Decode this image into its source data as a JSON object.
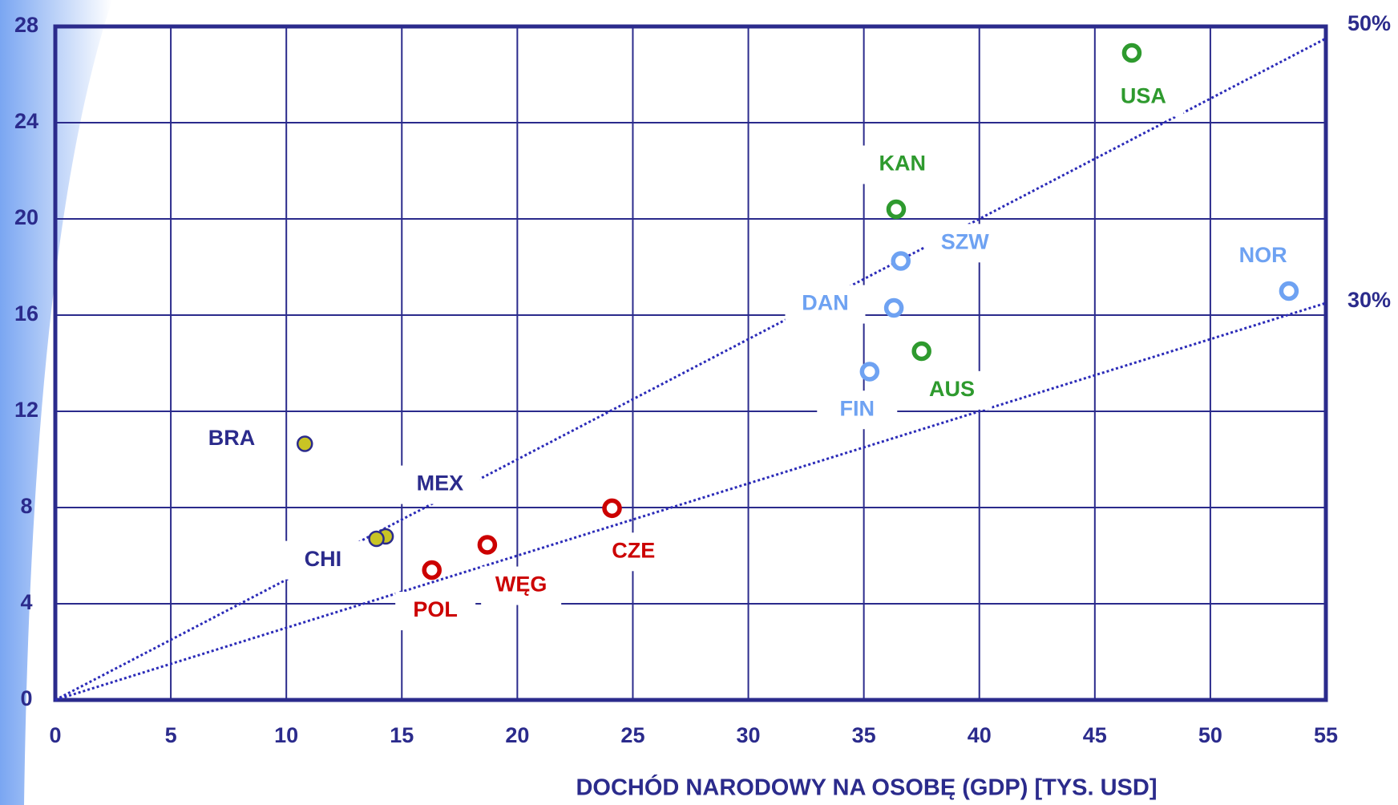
{
  "chart_data": {
    "type": "scatter",
    "x_label": "DOCHÓD NARODOWY NA OSOBĘ  (GDP) [TYS. USD]",
    "xlim": [
      0,
      55
    ],
    "xticks": [
      0,
      5,
      10,
      15,
      20,
      25,
      30,
      35,
      40,
      45,
      50,
      55
    ],
    "ylim": [
      0,
      28
    ],
    "yticks": [
      0,
      4,
      8,
      12,
      16,
      20,
      24,
      28
    ],
    "grid": true,
    "points": [
      {
        "label": "USA",
        "x": 46.6,
        "y": 26.9,
        "color": "#2e9a2e",
        "fill": "#ffffff"
      },
      {
        "label": "KAN",
        "x": 36.4,
        "y": 20.4,
        "color": "#2e9a2e",
        "fill": "#ffffff"
      },
      {
        "label": "SZW",
        "x": 36.6,
        "y": 18.25,
        "color": "#6ea2f2",
        "fill": "#ffffff"
      },
      {
        "label": "DAN",
        "x": 36.3,
        "y": 16.3,
        "color": "#6ea2f2",
        "fill": "#ffffff"
      },
      {
        "label": "NOR",
        "x": 53.4,
        "y": 17.0,
        "color": "#6ea2f2",
        "fill": "#ffffff"
      },
      {
        "label": "AUS",
        "x": 37.5,
        "y": 14.5,
        "color": "#2e9a2e",
        "fill": "#ffffff"
      },
      {
        "label": "FIN",
        "x": 35.25,
        "y": 13.65,
        "color": "#6ea2f2",
        "fill": "#ffffff"
      },
      {
        "label": "BRA",
        "x": 10.8,
        "y": 10.65,
        "color": "#2b2b8c",
        "fill": "#c8c424"
      },
      {
        "label": "MEX",
        "x": 14.3,
        "y": 6.8,
        "color": "#2b2b8c",
        "fill": "#c8c424"
      },
      {
        "label": "CHI",
        "x": 13.9,
        "y": 6.7,
        "color": "#2b2b8c",
        "fill": "#c8c424"
      },
      {
        "label": "CZE",
        "x": 24.1,
        "y": 7.97,
        "color": "#cc0000",
        "fill": "#ffffff"
      },
      {
        "label": "WĘG",
        "x": 18.7,
        "y": 6.45,
        "color": "#cc0000",
        "fill": "#ffffff"
      },
      {
        "label": "POL",
        "x": 16.3,
        "y": 5.4,
        "color": "#cc0000",
        "fill": "#ffffff"
      }
    ],
    "reference_lines": [
      {
        "label": "50%",
        "slope": 0.5,
        "color": "#2b2bb8"
      },
      {
        "label": "30%",
        "slope": 0.3,
        "color": "#2b2bb8"
      }
    ]
  }
}
